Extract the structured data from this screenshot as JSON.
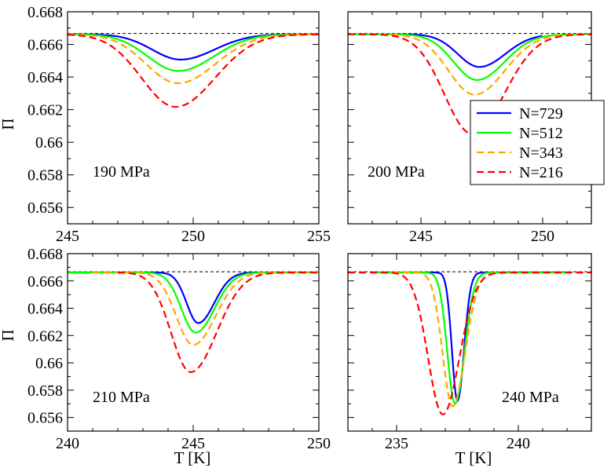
{
  "chart_data": {
    "type": "line",
    "ylabel": "Π",
    "xlabel": "T [K]",
    "y_ticks": [
      "0.668",
      "0.666",
      "0.664",
      "0.662",
      "0.66",
      "0.658",
      "0.656"
    ],
    "ylim": [
      0.655,
      0.668
    ],
    "reference_line": 0.66667,
    "legend": {
      "placement": "right-middle",
      "entries": [
        {
          "label": "N=729",
          "color": "#0000ff",
          "dash": "solid"
        },
        {
          "label": "N=512",
          "color": "#00ff00",
          "dash": "solid"
        },
        {
          "label": "N=343",
          "color": "#ffa500",
          "dash": "dashed"
        },
        {
          "label": "N=216",
          "color": "#ff0000",
          "dash": "dashed"
        }
      ]
    },
    "panels": [
      {
        "label": "190 MPa",
        "xlim": [
          245,
          255
        ],
        "x_ticks": [
          "245",
          "250",
          "255"
        ],
        "series": [
          {
            "name": "N=729",
            "center": 249.5,
            "depth": 0.00155,
            "wl": 1.6,
            "wr": 1.9,
            "x_start": 245,
            "x_end": 255
          },
          {
            "name": "N=512",
            "center": 249.4,
            "depth": 0.00225,
            "wl": 1.7,
            "wr": 2.0,
            "x_start": 245,
            "x_end": 255
          },
          {
            "name": "N=343",
            "center": 249.4,
            "depth": 0.003,
            "wl": 1.8,
            "wr": 2.1,
            "x_start": 245,
            "x_end": 255
          },
          {
            "name": "N=216",
            "center": 249.3,
            "depth": 0.00445,
            "wl": 1.9,
            "wr": 2.2,
            "x_start": 245,
            "x_end": 255
          }
        ]
      },
      {
        "label": "200 MPa",
        "xlim": [
          242,
          252
        ],
        "x_ticks": [
          "245",
          "250"
        ],
        "series": [
          {
            "name": "N=729",
            "center": 247.4,
            "depth": 0.002,
            "wl": 1.25,
            "wr": 1.5,
            "x_start": 244,
            "x_end": 250
          },
          {
            "name": "N=512",
            "center": 247.3,
            "depth": 0.0028,
            "wl": 1.35,
            "wr": 1.6,
            "x_start": 242,
            "x_end": 252
          },
          {
            "name": "N=343",
            "center": 247.2,
            "depth": 0.0037,
            "wl": 1.5,
            "wr": 1.75,
            "x_start": 242,
            "x_end": 252
          },
          {
            "name": "N=216",
            "center": 247.1,
            "depth": 0.0061,
            "wl": 1.6,
            "wr": 1.85,
            "x_start": 242,
            "x_end": 252
          }
        ]
      },
      {
        "label": "210 MPa",
        "xlim": [
          240,
          250
        ],
        "x_ticks": [
          "240",
          "245",
          "250"
        ],
        "series": [
          {
            "name": "N=729",
            "center": 245.2,
            "depth": 0.0037,
            "wl": 0.65,
            "wr": 0.9,
            "x_start": 240,
            "x_end": 249
          },
          {
            "name": "N=512",
            "center": 245.1,
            "depth": 0.0044,
            "wl": 0.8,
            "wr": 1.05,
            "x_start": 240,
            "x_end": 250
          },
          {
            "name": "N=343",
            "center": 245.0,
            "depth": 0.0053,
            "wl": 0.95,
            "wr": 1.25,
            "x_start": 241,
            "x_end": 250
          },
          {
            "name": "N=216",
            "center": 244.9,
            "depth": 0.0073,
            "wl": 1.1,
            "wr": 1.45,
            "x_start": 242,
            "x_end": 250
          }
        ]
      },
      {
        "label": "240 MPa",
        "xlim": [
          233,
          243
        ],
        "x_ticks": [
          "235",
          "240"
        ],
        "series": [
          {
            "name": "N=729",
            "center": 237.5,
            "depth": 0.0094,
            "wl": 0.32,
            "wr": 0.38,
            "x_start": 234,
            "x_end": 242
          },
          {
            "name": "N=512",
            "center": 237.4,
            "depth": 0.0096,
            "wl": 0.45,
            "wr": 0.55,
            "x_start": 234,
            "x_end": 242
          },
          {
            "name": "N=343",
            "center": 237.3,
            "depth": 0.0098,
            "wl": 0.58,
            "wr": 0.72,
            "x_start": 233,
            "x_end": 243
          },
          {
            "name": "N=216",
            "center": 236.9,
            "depth": 0.0104,
            "wl": 0.85,
            "wr": 0.95,
            "x_start": 233,
            "x_end": 243
          }
        ]
      }
    ]
  }
}
